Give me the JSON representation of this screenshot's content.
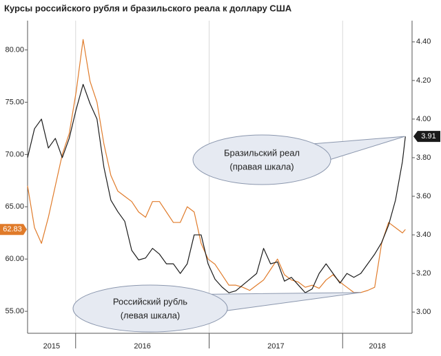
{
  "chart_data": {
    "type": "line",
    "title": "Курсы российского рубля и бразильского реала к доллару США",
    "x": [
      2015.64,
      2015.692,
      2015.744,
      2015.796,
      2015.848,
      2015.9,
      2015.952,
      2016.004,
      2016.056,
      2016.108,
      2016.16,
      2016.212,
      2016.264,
      2016.316,
      2016.368,
      2016.42,
      2016.472,
      2016.524,
      2016.576,
      2016.628,
      2016.68,
      2016.732,
      2016.784,
      2016.836,
      2016.888,
      2016.94,
      2016.992,
      2017.044,
      2017.096,
      2017.148,
      2017.2,
      2017.252,
      2017.304,
      2017.356,
      2017.408,
      2017.46,
      2017.512,
      2017.564,
      2017.616,
      2017.668,
      2017.72,
      2017.772,
      2017.824,
      2017.876,
      2017.928,
      2017.98,
      2018.032,
      2018.084,
      2018.136,
      2018.188,
      2018.24,
      2018.292,
      2018.344,
      2018.396,
      2018.448,
      2018.47
    ],
    "xlim": [
      2015.64,
      2018.52
    ],
    "xticks": [
      2016,
      2017,
      2018
    ],
    "year_labels": [
      2015,
      2016,
      2017,
      2018
    ],
    "ylim": [
      52.9,
      82.8
    ],
    "yticks": [
      {
        "value": 55,
        "label": "55.00"
      },
      {
        "value": 60,
        "label": "60.00"
      },
      {
        "value": 65,
        "label": "65.00"
      },
      {
        "value": 70,
        "label": "70.00"
      },
      {
        "value": 75,
        "label": "75.00"
      },
      {
        "value": 80,
        "label": "80.00"
      }
    ],
    "y2lim": [
      2.89,
      4.51
    ],
    "y2ticks": [
      {
        "value": 3,
        "label": "3.00"
      },
      {
        "value": 3.2,
        "label": "3.20"
      },
      {
        "value": 3.4,
        "label": "3.40"
      },
      {
        "value": 3.6,
        "label": "3.60"
      },
      {
        "value": 3.8,
        "label": "3.80"
      },
      {
        "value": 4,
        "label": "4.00"
      },
      {
        "value": 4.2,
        "label": "4.20"
      },
      {
        "value": 4.4,
        "label": "4.40"
      }
    ],
    "series": [
      {
        "name": "Российский рубль",
        "note": "(левая шкала)",
        "color": "#e07b2a",
        "axis": "y",
        "values": [
          67,
          63,
          61.5,
          64,
          67,
          70,
          72,
          76,
          81,
          77,
          75,
          71,
          68,
          66.5,
          66,
          65.5,
          64.5,
          64,
          65.5,
          65.5,
          64.5,
          63.5,
          63.5,
          65,
          64.5,
          61.5,
          60,
          59.5,
          58.5,
          57.5,
          57.5,
          57.3,
          57,
          57.5,
          58,
          59,
          60,
          58.5,
          58,
          57.8,
          57.3,
          57.5,
          57.2,
          58,
          58.5,
          57.8,
          57.3,
          56.8,
          56.8,
          57,
          57.3,
          61.5,
          63.5,
          63,
          62.5,
          62.83
        ]
      },
      {
        "name": "Бразильский реал",
        "note": "(правая шкала)",
        "color": "#1a1a1a",
        "axis": "y2",
        "values": [
          3.8,
          3.95,
          4.0,
          3.85,
          3.9,
          3.8,
          3.9,
          4.05,
          4.18,
          4.08,
          4.0,
          3.75,
          3.58,
          3.52,
          3.47,
          3.32,
          3.27,
          3.28,
          3.33,
          3.3,
          3.25,
          3.25,
          3.2,
          3.25,
          3.4,
          3.4,
          3.25,
          3.17,
          3.13,
          3.1,
          3.11,
          3.14,
          3.17,
          3.2,
          3.33,
          3.25,
          3.26,
          3.16,
          3.18,
          3.14,
          3.1,
          3.12,
          3.2,
          3.25,
          3.2,
          3.15,
          3.2,
          3.18,
          3.2,
          3.25,
          3.3,
          3.36,
          3.45,
          3.58,
          3.78,
          3.91
        ]
      }
    ],
    "grid": true
  }
}
